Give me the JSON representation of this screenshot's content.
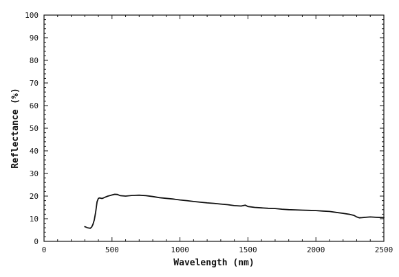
{
  "chart_data": {
    "type": "line",
    "title": "",
    "xlabel": "Wavelength (nm)",
    "ylabel": "Reflectance (%)",
    "xlim": [
      0,
      2500
    ],
    "ylim": [
      0,
      100
    ],
    "x_ticks": [
      0,
      500,
      1000,
      1500,
      2000,
      2500
    ],
    "y_ticks": [
      0,
      10,
      20,
      30,
      40,
      50,
      60,
      70,
      80,
      90,
      100
    ],
    "grid": false,
    "legend": "none",
    "line_color": "#111111",
    "series": [
      {
        "x": [
          300,
          320,
          340,
          350,
          360,
          370,
          380,
          390,
          400,
          410,
          420,
          430,
          450,
          470,
          500,
          520,
          540,
          560,
          600,
          650,
          700,
          750,
          800,
          850,
          900,
          950,
          1000,
          1050,
          1100,
          1150,
          1200,
          1250,
          1300,
          1350,
          1400,
          1450,
          1480,
          1500,
          1550,
          1600,
          1650,
          1700,
          1750,
          1800,
          1850,
          1900,
          1950,
          2000,
          2050,
          2100,
          2150,
          2200,
          2250,
          2280,
          2300,
          2320,
          2340,
          2360,
          2400,
          2450,
          2500
        ],
        "values": [
          6.5,
          6.0,
          5.8,
          6.3,
          7.5,
          9.5,
          13.0,
          17.5,
          19.0,
          19.2,
          19.0,
          19.0,
          19.5,
          20.0,
          20.5,
          20.8,
          20.7,
          20.2,
          20.0,
          20.3,
          20.4,
          20.2,
          19.8,
          19.3,
          19.0,
          18.7,
          18.3,
          18.0,
          17.6,
          17.3,
          17.0,
          16.8,
          16.5,
          16.2,
          15.8,
          15.6,
          16.0,
          15.4,
          15.0,
          14.8,
          14.6,
          14.5,
          14.2,
          14.0,
          13.9,
          13.8,
          13.7,
          13.6,
          13.4,
          13.2,
          12.8,
          12.4,
          11.9,
          11.5,
          10.8,
          10.4,
          10.5,
          10.6,
          10.8,
          10.6,
          10.5
        ]
      }
    ]
  }
}
